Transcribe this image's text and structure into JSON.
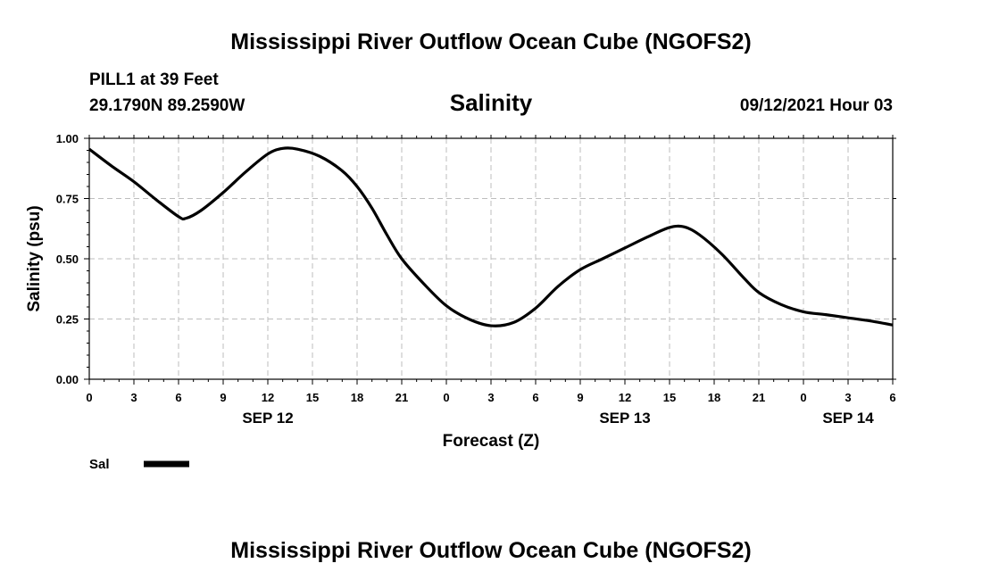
{
  "header": {
    "title": "Mississippi River Outflow Ocean Cube (NGOFS2)",
    "station": "PILL1 at 39 Feet",
    "coordinates": "29.1790N  89.2590W",
    "variable": "Salinity",
    "datetime": "09/12/2021 Hour 03"
  },
  "footer": {
    "title": "Mississippi River Outflow Ocean Cube (NGOFS2)"
  },
  "chart_data": {
    "type": "line",
    "title": "Salinity",
    "xlabel": "Forecast (Z)",
    "ylabel": "Salinity (psu)",
    "xlim": [
      0,
      54
    ],
    "ylim": [
      0,
      1
    ],
    "x_unit": "forecast hour",
    "x_ticks": [
      0,
      3,
      6,
      9,
      12,
      15,
      18,
      21,
      24,
      27,
      30,
      33,
      36,
      39,
      42,
      45,
      48,
      51,
      54
    ],
    "x_tick_labels": [
      "0",
      "3",
      "6",
      "9",
      "12",
      "15",
      "18",
      "21",
      "0",
      "3",
      "6",
      "9",
      "12",
      "15",
      "18",
      "21",
      "0",
      "3",
      "6"
    ],
    "y_ticks": [
      0,
      0.25,
      0.5,
      0.75,
      1.0
    ],
    "y_tick_labels": [
      "0.00",
      "0.25",
      "0.50",
      "0.75",
      "1.00"
    ],
    "day_labels": [
      {
        "x": 12,
        "label": "SEP 12"
      },
      {
        "x": 36,
        "label": "SEP 13"
      },
      {
        "x": 51,
        "label": "SEP 14"
      }
    ],
    "grid": true,
    "legend_position": "bottom-left",
    "series": [
      {
        "name": "Sal",
        "color": "#000000",
        "x": [
          0,
          1.5,
          3,
          4.5,
          6,
          6.5,
          7.5,
          9,
          10.5,
          12,
          13,
          14,
          15.5,
          17,
          18,
          19,
          20,
          21,
          22.5,
          24,
          25.5,
          27,
          28.5,
          30,
          31.5,
          33,
          34.5,
          36,
          37.5,
          39,
          40,
          41,
          42.5,
          44,
          45,
          46.5,
          48,
          49.5,
          51,
          52.5,
          54
        ],
        "values": [
          0.955,
          0.885,
          0.82,
          0.745,
          0.675,
          0.668,
          0.7,
          0.775,
          0.86,
          0.935,
          0.958,
          0.955,
          0.925,
          0.865,
          0.8,
          0.71,
          0.6,
          0.5,
          0.395,
          0.305,
          0.25,
          0.222,
          0.235,
          0.295,
          0.385,
          0.455,
          0.5,
          0.545,
          0.59,
          0.63,
          0.632,
          0.6,
          0.52,
          0.42,
          0.36,
          0.31,
          0.28,
          0.268,
          0.255,
          0.242,
          0.225
        ]
      }
    ]
  }
}
